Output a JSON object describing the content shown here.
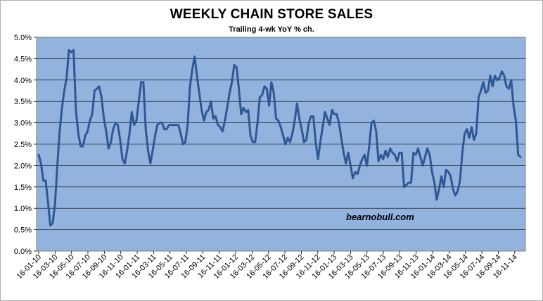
{
  "chart_data": {
    "type": "line",
    "title": "WEEKLY CHAIN STORE SALES",
    "subtitle": "Trailing 4-wk YoY % ch.",
    "xlabel": "",
    "ylabel": "",
    "ylim": [
      0,
      5
    ],
    "y_ticks": [
      "0.0%",
      "0.5%",
      "1.0%",
      "1.5%",
      "2.0%",
      "2.5%",
      "3.0%",
      "3.5%",
      "4.0%",
      "4.5%",
      "5.0%"
    ],
    "x_ticks": [
      "16-01-10",
      "16-03-10",
      "16-05-10",
      "16-07-10",
      "16-09-10",
      "16-11-10",
      "16-01-11",
      "16-03-11",
      "16-05-11",
      "16-07-11",
      "16-09-11",
      "16-11-11",
      "16-01-12",
      "16-03-12",
      "16-05-12",
      "16-07-12",
      "16-09-12",
      "16-11-12",
      "16-01-13",
      "16-03-13",
      "16-05-13",
      "16-07-13",
      "16-09-13",
      "16-11-13",
      "16-01-14",
      "16-03-14",
      "16-05-14",
      "16-07-14",
      "16-09-14",
      "16-11-14"
    ],
    "grid": true,
    "plot_background": "#93b3df",
    "line_color": "#2e5895",
    "annotation": "bearnobull.com",
    "series": [
      {
        "values": [
          2.25,
          2.05,
          1.65,
          1.65,
          1.15,
          0.6,
          0.65,
          1.1,
          2.0,
          2.8,
          3.35,
          3.75,
          4.05,
          4.7,
          4.65,
          4.7,
          3.3,
          2.75,
          2.45,
          2.45,
          2.7,
          2.8,
          3.05,
          3.2,
          3.75,
          3.8,
          3.85,
          3.6,
          3.1,
          2.8,
          2.4,
          2.55,
          2.85,
          3.0,
          2.95,
          2.6,
          2.15,
          2.05,
          2.35,
          2.75,
          3.25,
          2.95,
          3.05,
          3.5,
          3.95,
          3.95,
          2.85,
          2.35,
          2.05,
          2.35,
          2.7,
          2.95,
          3.0,
          3.0,
          2.85,
          2.85,
          2.95,
          2.95,
          2.95,
          2.95,
          2.95,
          2.75,
          2.5,
          2.55,
          2.95,
          3.85,
          4.25,
          4.55,
          4.1,
          3.7,
          3.3,
          3.05,
          3.25,
          3.3,
          3.5,
          3.1,
          3.15,
          2.95,
          2.9,
          2.8,
          3.05,
          3.35,
          3.7,
          3.95,
          4.35,
          4.3,
          3.8,
          3.2,
          3.35,
          3.25,
          3.3,
          2.7,
          2.55,
          2.55,
          3.0,
          3.6,
          3.65,
          3.85,
          3.8,
          3.4,
          3.95,
          3.7,
          3.1,
          3.05,
          2.9,
          2.7,
          2.5,
          2.65,
          2.55,
          2.75,
          3.05,
          3.45,
          3.1,
          2.85,
          2.55,
          2.6,
          3.0,
          3.15,
          3.15,
          2.55,
          2.15,
          2.55,
          2.9,
          3.25,
          3.1,
          2.95,
          3.3,
          3.2,
          3.2,
          3.0,
          2.65,
          2.3,
          2.05,
          2.3,
          2.0,
          1.7,
          1.85,
          1.8,
          2.0,
          2.15,
          2.25,
          2.0,
          2.45,
          3.0,
          3.05,
          2.8,
          2.1,
          2.25,
          2.15,
          2.35,
          2.2,
          2.4,
          2.3,
          2.25,
          2.1,
          2.3,
          2.3,
          1.5,
          1.55,
          1.6,
          1.6,
          2.3,
          2.25,
          2.4,
          2.2,
          2.0,
          2.2,
          2.4,
          2.25,
          1.85,
          1.6,
          1.2,
          1.45,
          1.75,
          1.5,
          1.9,
          1.85,
          1.75,
          1.45,
          1.3,
          1.4,
          1.65,
          2.3,
          2.75,
          2.85,
          2.65,
          2.9,
          2.6,
          2.75,
          3.6,
          3.75,
          3.95,
          3.7,
          3.75,
          4.1,
          3.85,
          4.1,
          4.0,
          4.05,
          4.2,
          4.1,
          3.85,
          3.8,
          4.0,
          3.4,
          3.05,
          2.25,
          2.2
        ]
      }
    ]
  }
}
